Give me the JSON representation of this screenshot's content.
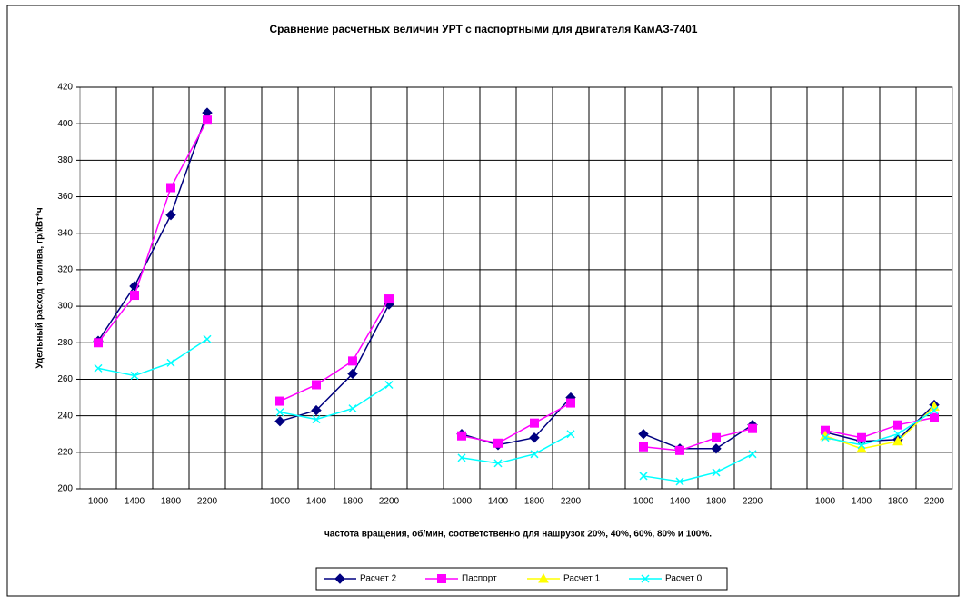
{
  "chart_data": {
    "type": "line",
    "title": "Сравнение расчетных величин УРТ с паспортными для двигателя КамАЗ-7401",
    "y_label": "Удельный расход топлива, гр/кВт*ч",
    "x_label": "частота вращения, об/мин, соответственно для нашрузок 20%, 40%, 60%, 80% и 100%.",
    "categories": [
      "1000",
      "1400",
      "1800",
      "2200",
      null,
      "1000",
      "1400",
      "1800",
      "2200",
      null,
      "1000",
      "1400",
      "1800",
      "2200",
      null,
      "1000",
      "1400",
      "1800",
      "2200",
      null,
      "1000",
      "1400",
      "1800",
      "2200"
    ],
    "series": [
      {
        "name": "Расчет 2",
        "color": "#000080",
        "marker": "diamond",
        "values": [
          281,
          311,
          350,
          406,
          null,
          237,
          243,
          263,
          301,
          null,
          230,
          224,
          228,
          250,
          null,
          230,
          222,
          222,
          235,
          null,
          231,
          226,
          227,
          246
        ]
      },
      {
        "name": "Паспорт",
        "color": "#ff00ff",
        "marker": "square",
        "values": [
          280,
          306,
          365,
          402,
          null,
          248,
          257,
          270,
          304,
          null,
          229,
          225,
          236,
          247,
          null,
          223,
          221,
          228,
          233,
          null,
          232,
          228,
          235,
          239
        ]
      },
      {
        "name": "Расчет 1",
        "color": "#ffff00",
        "marker": "triangle",
        "values": [
          null,
          null,
          null,
          null,
          null,
          null,
          null,
          null,
          null,
          null,
          null,
          null,
          null,
          null,
          null,
          null,
          null,
          null,
          null,
          null,
          229,
          222,
          226,
          245
        ]
      },
      {
        "name": "Расчет 0",
        "color": "#00ffff",
        "marker": "x",
        "values": [
          266,
          262,
          269,
          282,
          null,
          242,
          238,
          244,
          257,
          null,
          217,
          214,
          219,
          230,
          null,
          207,
          204,
          209,
          219,
          null,
          228,
          224,
          230,
          243
        ]
      }
    ],
    "ylim": [
      200,
      420
    ],
    "yticks": [
      200,
      220,
      240,
      260,
      280,
      300,
      320,
      340,
      360,
      380,
      400,
      420
    ],
    "grid": true,
    "legend": "bottom"
  }
}
